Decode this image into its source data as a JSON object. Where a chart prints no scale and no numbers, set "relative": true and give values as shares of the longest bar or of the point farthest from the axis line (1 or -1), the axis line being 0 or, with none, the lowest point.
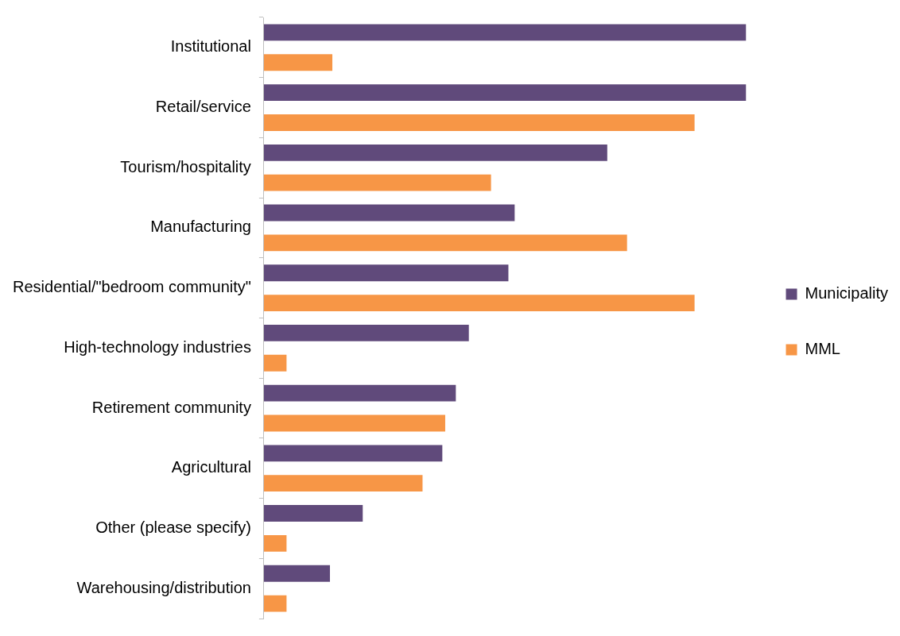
{
  "chart_data": {
    "type": "bar",
    "orientation": "horizontal",
    "relative": true,
    "legend": "right",
    "categories": [
      "Institutional",
      "Retail/service",
      "Tourism/hospitality",
      "Manufacturing",
      "Residential/\"bedroom community\"",
      "High-technology industries",
      "Retirement community",
      "Agricultural",
      "Other (please specify)",
      "Warehousing/distribution"
    ],
    "series": [
      {
        "name": "Municipality",
        "color": "#604a7b",
        "values": [
          1,
          1,
          0.712,
          0.52,
          0.507,
          0.425,
          0.398,
          0.37,
          0.205,
          0.137
        ]
      },
      {
        "name": "MML",
        "color": "#f79646",
        "values": [
          0.142,
          0.893,
          0.471,
          0.753,
          0.893,
          0.047,
          0.376,
          0.329,
          0.047,
          0.047
        ]
      }
    ]
  }
}
